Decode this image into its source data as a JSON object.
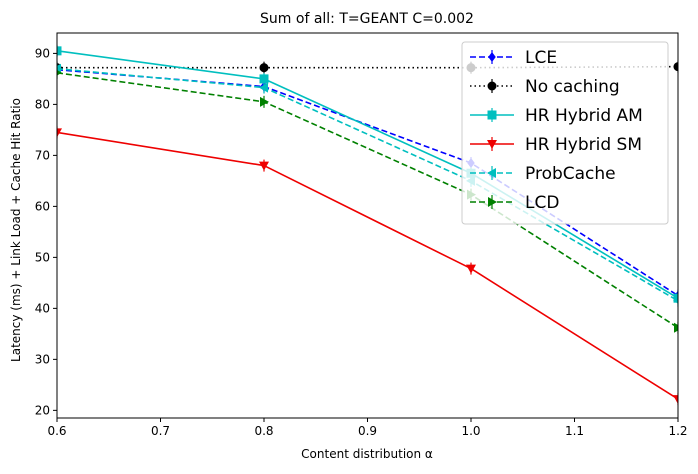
{
  "chart_data": {
    "type": "line",
    "title": "Sum of all: T=GEANT C=0.002",
    "xlabel": "Content distribution α",
    "ylabel": "Latency (ms) + Link Load + Cache Hit Ratio",
    "xlim": [
      0.6,
      1.2
    ],
    "ylim": [
      18.5,
      94
    ],
    "xticks": [
      0.6,
      0.7,
      0.8,
      0.9,
      1.0,
      1.1,
      1.2
    ],
    "xtick_labels": [
      "0.6",
      "0.7",
      "0.8",
      "0.9",
      "1.0",
      "1.1",
      "1.2"
    ],
    "yticks": [
      20,
      30,
      40,
      50,
      60,
      70,
      80,
      90
    ],
    "ytick_labels": [
      "20",
      "30",
      "40",
      "50",
      "60",
      "70",
      "80",
      "90"
    ],
    "grid": false,
    "legend_position": "top-right",
    "x": [
      0.6,
      0.8,
      1.0,
      1.2
    ],
    "series": [
      {
        "name": "LCE",
        "values": [
          86.8,
          83.5,
          68.5,
          42.5
        ],
        "color": "#0000ff",
        "dash": "dashed",
        "marker": "diamond"
      },
      {
        "name": "No caching",
        "values": [
          87.2,
          87.2,
          87.2,
          87.4
        ],
        "color": "#000000",
        "dash": "dotted",
        "marker": "circle"
      },
      {
        "name": "HR Hybrid AM",
        "values": [
          90.5,
          85.0,
          66.5,
          42.0
        ],
        "color": "#00bfbf",
        "dash": "solid",
        "marker": "square"
      },
      {
        "name": "HR Hybrid SM",
        "values": [
          74.5,
          68.0,
          47.8,
          22.2
        ],
        "color": "#ee0000",
        "dash": "solid",
        "marker": "triangle-down"
      },
      {
        "name": "ProbCache",
        "values": [
          87.0,
          83.3,
          65.0,
          41.5
        ],
        "color": "#00bfbf",
        "dash": "dashed",
        "marker": "triangle-left"
      },
      {
        "name": "LCD",
        "values": [
          86.2,
          80.5,
          62.3,
          36.2
        ],
        "color": "#008000",
        "dash": "dashed",
        "marker": "triangle-right"
      }
    ]
  }
}
